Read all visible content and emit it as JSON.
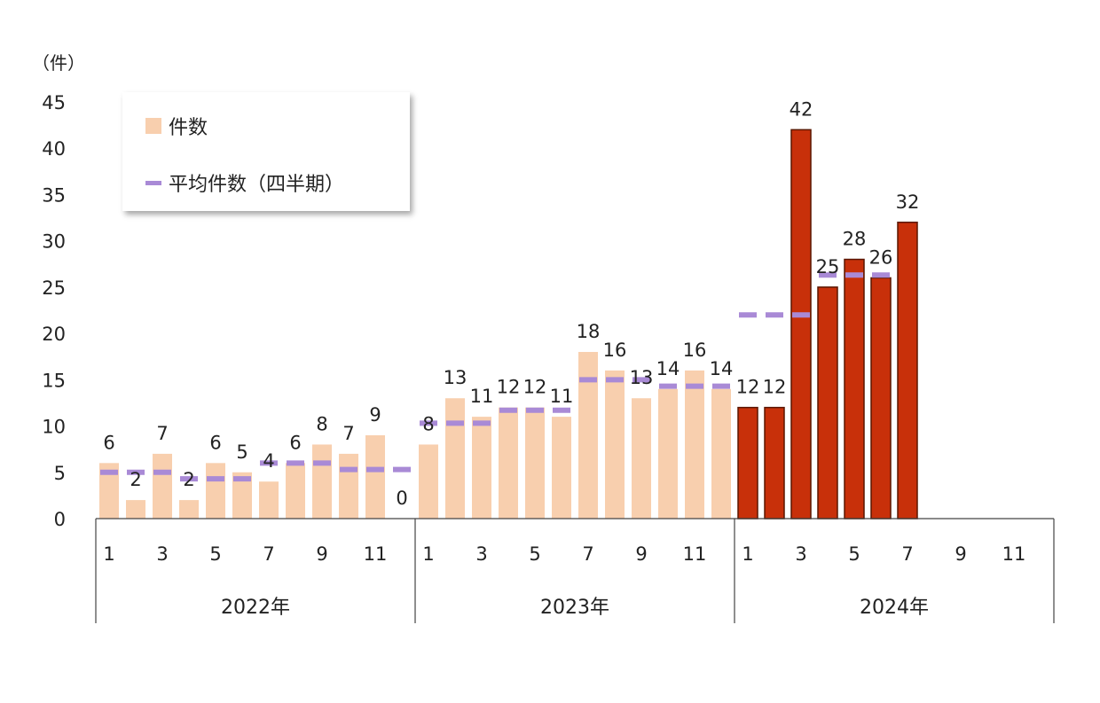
{
  "chart_data": {
    "type": "bar",
    "unit_label": "（件）",
    "ylim": [
      0,
      45
    ],
    "yticks": [
      0,
      5,
      10,
      15,
      20,
      25,
      30,
      35,
      40,
      45
    ],
    "xtick_labels": [
      "1",
      "3",
      "5",
      "7",
      "9",
      "11"
    ],
    "years": [
      "2022年",
      "2023年",
      "2024年"
    ],
    "months_per_year": 12,
    "legend": {
      "count_label": "件数",
      "average_label": "平均件数（四半期）"
    },
    "series": [
      {
        "name": "件数",
        "values": [
          6,
          2,
          7,
          2,
          6,
          5,
          4,
          6,
          8,
          7,
          9,
          0,
          8,
          13,
          11,
          12,
          12,
          11,
          18,
          16,
          13,
          14,
          16,
          14,
          12,
          12,
          42,
          25,
          28,
          26,
          32,
          null,
          null,
          null,
          null,
          null
        ],
        "data_labels": [
          "6",
          "2",
          "7",
          "2",
          "6",
          "5",
          "4",
          "6",
          "8",
          "7",
          "9",
          "0",
          "8",
          "13",
          "11",
          "12",
          "12",
          "11",
          "18",
          "16",
          "13",
          "14",
          "16",
          "14",
          "12",
          "12",
          "42",
          "25",
          "28",
          "26",
          "32",
          "",
          "",
          "",
          "",
          ""
        ]
      },
      {
        "name": "平均件数（四半期）",
        "values": [
          5,
          5,
          5,
          4.3,
          4.3,
          4.3,
          6,
          6,
          6,
          5.3,
          5.3,
          5.3,
          10.3,
          10.3,
          10.3,
          11.7,
          11.7,
          11.7,
          15,
          15,
          15,
          14.3,
          14.3,
          14.3,
          22,
          22,
          22,
          26.3,
          26.3,
          26.3,
          null,
          null,
          null,
          null,
          null,
          null
        ]
      }
    ],
    "colors": {
      "bar_past": "#f8cfae",
      "bar_current": "#c8300a",
      "bar_current_edge": "#5a1600",
      "average_line": "#a98ad6",
      "axis": "#444444"
    },
    "grid": false,
    "legend_position": "top-left"
  }
}
